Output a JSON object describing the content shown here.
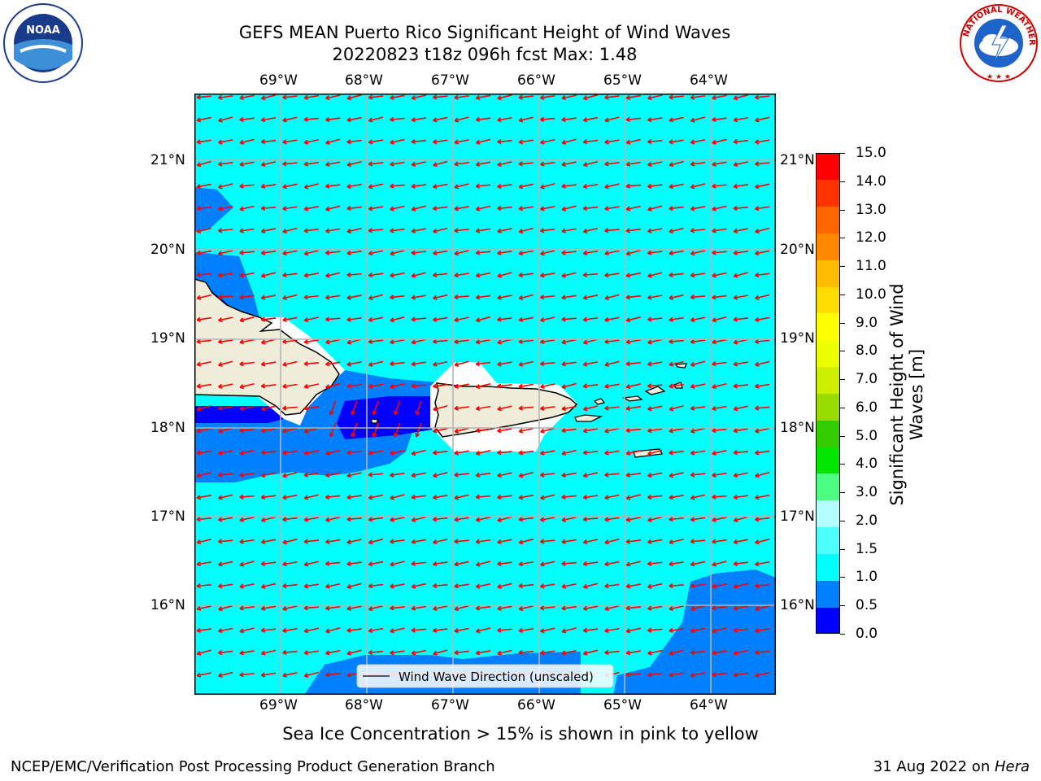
{
  "title": {
    "line1": "GEFS MEAN Puerto Rico Significant Height of Wind Waves",
    "line2": "20220823 t18z 096h fcst   Max: 1.48"
  },
  "logos": {
    "noaa_text": "NOAA",
    "noaa_ring": "NATIONAL OCEANIC AND ATMOSPHERIC ADMINISTRATION · U.S. DEPARTMENT OF COMMERCE",
    "nws_ring": "NATIONAL WEATHER SERVICE"
  },
  "map": {
    "lon_labels": [
      "69°W",
      "68°W",
      "67°W",
      "66°W",
      "65°W",
      "64°W"
    ],
    "lat_labels": [
      "21°N",
      "20°N",
      "19°N",
      "18°N",
      "17°N",
      "16°N"
    ],
    "legend": "Wind Wave Direction (unscaled)",
    "ocean_color": "#00ffff",
    "land_color": "#efedda",
    "arrow_color": "#ff0000"
  },
  "colorbar": {
    "label": "Significant Height of Wind Waves [m]",
    "ticks": [
      "0.0",
      "0.5",
      "1.0",
      "1.5",
      "2.0",
      "3.0",
      "4.0",
      "5.0",
      "6.0",
      "7.0",
      "8.0",
      "9.0",
      "10.0",
      "11.0",
      "12.0",
      "13.0",
      "14.0",
      "15.0"
    ],
    "colors": [
      "#0000ff",
      "#0080ff",
      "#00ffff",
      "#4dffff",
      "#b3ffff",
      "#4dff80",
      "#00e600",
      "#33cc00",
      "#99dd00",
      "#ccee00",
      "#eeff00",
      "#ffff00",
      "#ffdd00",
      "#ffbb00",
      "#ff8800",
      "#ff6600",
      "#ff3300",
      "#ff0000"
    ]
  },
  "caption": "Sea Ice Concentration > 15% is shown in pink to yellow",
  "footer": {
    "left": "NCEP/EMC/Verification Post Processing Product Generation Branch",
    "right_prefix": "31 Aug 2022 on ",
    "right_italic": "Hera"
  }
}
